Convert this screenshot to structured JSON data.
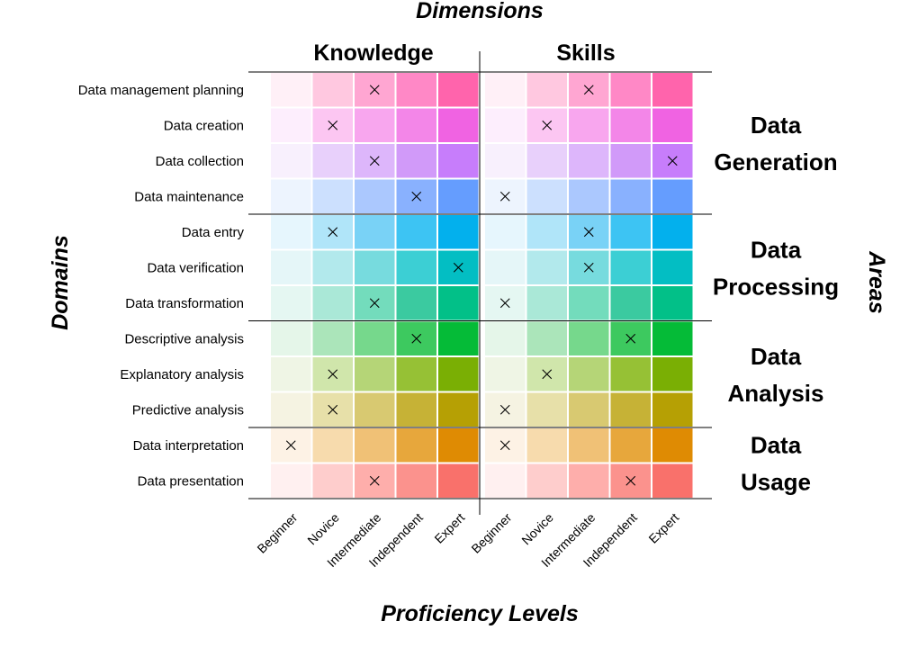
{
  "chart_data": {
    "type": "heatmap",
    "title": "Dimensions",
    "xlabel": "Proficiency Levels",
    "ylabel": "Domains",
    "y2label": "Areas",
    "dimensions": [
      "Knowledge",
      "Skills"
    ],
    "levels": [
      "Beginner",
      "Novice",
      "Intermediate",
      "Independent",
      "Expert"
    ],
    "areas": [
      {
        "name": "Data Generation",
        "lines": [
          "Data",
          "Generation"
        ],
        "domains": 4
      },
      {
        "name": "Data Processing",
        "lines": [
          "Data",
          "Processing"
        ],
        "domains": 3
      },
      {
        "name": "Data Analysis",
        "lines": [
          "Data",
          "Analysis"
        ],
        "domains": 3
      },
      {
        "name": "Data Usage",
        "lines": [
          "Data",
          "Usage"
        ],
        "domains": 2
      }
    ],
    "domains": [
      {
        "name": "Data management planning",
        "knowledge": "Intermediate",
        "skills": "Intermediate"
      },
      {
        "name": "Data creation",
        "knowledge": "Novice",
        "skills": "Novice"
      },
      {
        "name": "Data collection",
        "knowledge": "Intermediate",
        "skills": "Expert"
      },
      {
        "name": "Data maintenance",
        "knowledge": "Independent",
        "skills": "Beginner"
      },
      {
        "name": "Data entry",
        "knowledge": "Novice",
        "skills": "Intermediate"
      },
      {
        "name": "Data verification",
        "knowledge": "Expert",
        "skills": "Intermediate"
      },
      {
        "name": "Data transformation",
        "knowledge": "Intermediate",
        "skills": "Beginner"
      },
      {
        "name": "Descriptive analysis",
        "knowledge": "Independent",
        "skills": "Independent"
      },
      {
        "name": "Explanatory analysis",
        "knowledge": "Novice",
        "skills": "Novice"
      },
      {
        "name": "Predictive analysis",
        "knowledge": "Novice",
        "skills": "Beginner"
      },
      {
        "name": "Data interpretation",
        "knowledge": "Beginner",
        "skills": "Beginner"
      },
      {
        "name": "Data presentation",
        "knowledge": "Intermediate",
        "skills": "Independent"
      }
    ],
    "row_colors": [
      [
        "#fff0f7",
        "#ffc8e0",
        "#ffa6d2",
        "#ff88c6",
        "#ff64ac"
      ],
      [
        "#fdeefd",
        "#fcc6f2",
        "#f8a6ee",
        "#f386e8",
        "#f063e2"
      ],
      [
        "#f8f0fd",
        "#e8d0fb",
        "#ddb6fb",
        "#d19af9",
        "#c77dfb"
      ],
      [
        "#edf4fe",
        "#cce0fe",
        "#abc8fe",
        "#89b1fe",
        "#659dfe"
      ],
      [
        "#e6f6fd",
        "#b0e5f9",
        "#79d2f6",
        "#3dc4f3",
        "#03b0ed"
      ],
      [
        "#e5f6f8",
        "#b2e9ec",
        "#77dbde",
        "#3ccfd4",
        "#03bec3"
      ],
      [
        "#e5f7f2",
        "#aae8d7",
        "#73dcbc",
        "#3bcaa0",
        "#02c088"
      ],
      [
        "#e5f6e9",
        "#abe5ba",
        "#76d88c",
        "#3dc95f",
        "#05bb37"
      ],
      [
        "#eff5e5",
        "#d0e6ab",
        "#b5d577",
        "#96c135",
        "#7aaf04"
      ],
      [
        "#f5f3e2",
        "#e7e0a9",
        "#d8c971",
        "#c6b236",
        "#b6a004"
      ],
      [
        "#fdf2e5",
        "#f7dbad",
        "#f0c176",
        "#e7a73c",
        "#df8b03"
      ],
      [
        "#fff0f0",
        "#fecdcc",
        "#feaeab",
        "#fb928d",
        "#f9716b"
      ]
    ]
  }
}
